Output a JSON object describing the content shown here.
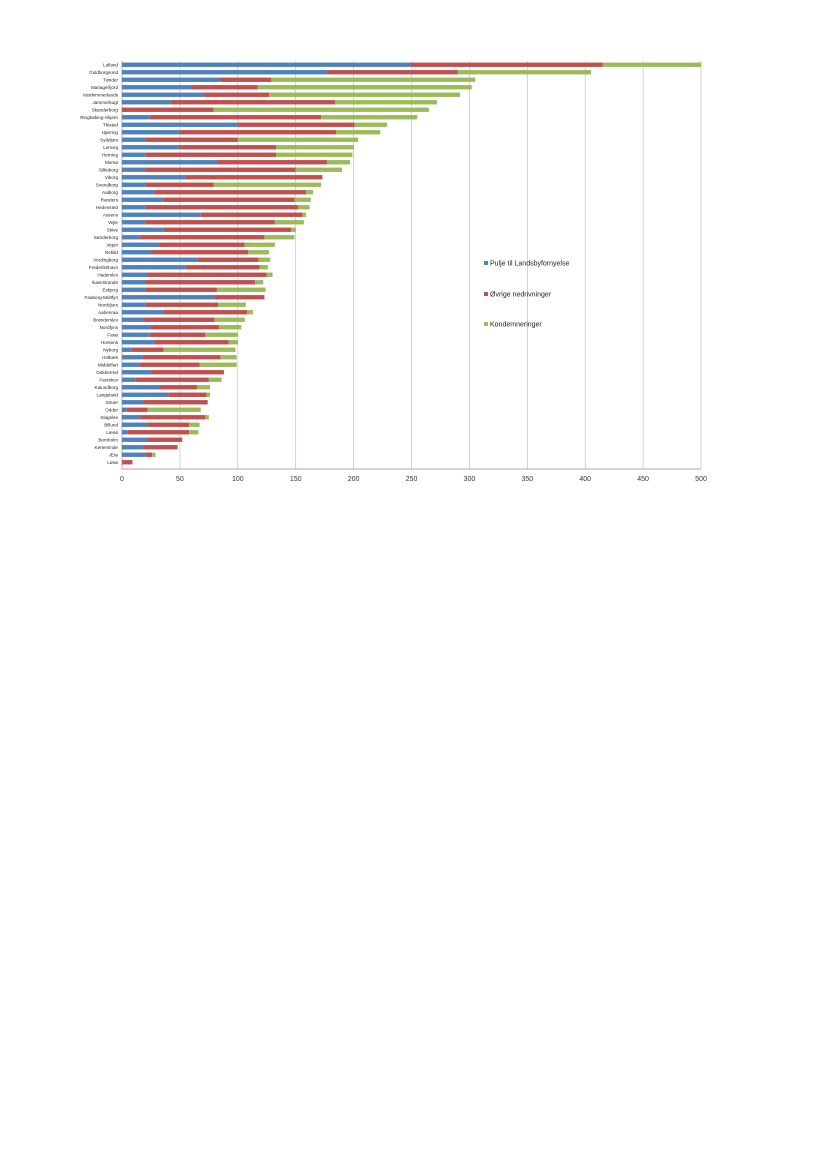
{
  "colors": {
    "pulje": "#4f81bd",
    "ovrige": "#c0504d",
    "kondem": "#9bbb59",
    "grid": "#bfbfbf"
  },
  "chart_data": {
    "type": "bar",
    "orientation": "horizontal",
    "stacked": true,
    "title": "",
    "xlabel": "",
    "ylabel": "",
    "xlim": [
      0,
      500
    ],
    "xticks": [
      0,
      50,
      100,
      150,
      200,
      250,
      300,
      350,
      400,
      450,
      500
    ],
    "grid": "vertical",
    "legend_position": "right",
    "categories": [
      "Lolland",
      "Guldborgsund",
      "Tønder",
      "Mariagerfjord",
      "Vesthimmerlands",
      "Jammerbugt",
      "Skanderborg",
      "Ringkøbing-Skjern",
      "Thisted",
      "Hjørring",
      "Syddjurs",
      "Lemvig",
      "Herning",
      "Morsø",
      "Silkeborg",
      "Viborg",
      "Svendborg",
      "Aalborg",
      "Randers",
      "Hedensted",
      "Assens",
      "Vejle",
      "Skive",
      "Sønderborg",
      "Vejen",
      "Rebild",
      "Vordingborg",
      "Frederikshavn",
      "Haderslev",
      "Ikast-Brande",
      "Esbjerg",
      "Faaborg-Midtfyn",
      "Norddjurs",
      "Aabenraa",
      "Brønderslev",
      "Nordfyns",
      "Fanø",
      "Horsens",
      "Nyborg",
      "Holbæk",
      "Middelfart",
      "Odsherred",
      "Favrskov",
      "Kalundborg",
      "Langeland",
      "Struer",
      "Odder",
      "Slagelse",
      "Billund",
      "Læsø",
      "Bornholm",
      "Kerteminde",
      "Ærø",
      "Lønø"
    ],
    "series": [
      {
        "name": "Pulje til Landsbyfornyelse",
        "values": [
          250,
          177,
          85,
          60,
          70,
          42,
          0,
          24,
          100,
          50,
          20,
          50,
          20,
          82,
          20,
          55,
          20,
          28,
          36,
          20,
          68,
          20,
          36,
          15,
          32,
          25,
          65,
          55,
          22,
          20,
          20,
          80,
          20,
          36,
          18,
          25,
          24,
          28,
          8,
          18,
          15,
          25,
          12,
          32,
          40,
          18,
          4,
          15,
          22,
          5,
          22,
          18,
          20,
          0
        ]
      },
      {
        "name": "Øvrige nedrivninger",
        "values": [
          165,
          113,
          44,
          57,
          57,
          142,
          79,
          148,
          101,
          135,
          80,
          83,
          113,
          95,
          130,
          118,
          59,
          131,
          113,
          132,
          88,
          112,
          110,
          108,
          74,
          84,
          53,
          64,
          103,
          95,
          62,
          43,
          63,
          72,
          62,
          59,
          48,
          64,
          28,
          67,
          52,
          63,
          63,
          33,
          33,
          56,
          18,
          57,
          36,
          53,
          30,
          30,
          6,
          9
        ]
      },
      {
        "name": "Kondemneringer",
        "values": [
          85,
          115,
          176,
          185,
          165,
          88,
          186,
          83,
          28,
          38,
          104,
          67,
          66,
          20,
          40,
          0,
          93,
          6,
          14,
          10,
          3,
          25,
          4,
          26,
          26,
          18,
          10,
          7,
          5,
          7,
          42,
          0,
          24,
          5,
          26,
          19,
          28,
          8,
          62,
          14,
          32,
          0,
          11,
          11,
          3,
          0,
          46,
          3,
          9,
          8,
          0,
          0,
          3,
          0
        ]
      }
    ]
  }
}
